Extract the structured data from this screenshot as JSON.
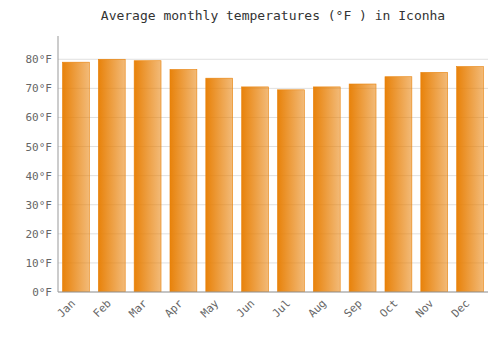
{
  "chart_data": {
    "type": "bar",
    "title": "Average monthly temperatures (°F ) in Iconha",
    "categories": [
      "Jan",
      "Feb",
      "Mar",
      "Apr",
      "May",
      "Jun",
      "Jul",
      "Aug",
      "Sep",
      "Oct",
      "Nov",
      "Dec"
    ],
    "values": [
      79,
      80,
      79.5,
      76.5,
      73.5,
      70.5,
      69.5,
      70.5,
      71.5,
      74,
      75.5,
      77.5
    ],
    "color": "#E8820A",
    "ylim": [
      0,
      88
    ],
    "yticks": [
      {
        "value": 0,
        "label": "0°F"
      },
      {
        "value": 10,
        "label": "10°F"
      },
      {
        "value": 20,
        "label": "20°F"
      },
      {
        "value": 30,
        "label": "30°F"
      },
      {
        "value": 40,
        "label": "40°F"
      },
      {
        "value": 50,
        "label": "50°F"
      },
      {
        "value": 60,
        "label": "60°F"
      },
      {
        "value": 70,
        "label": "70°F"
      },
      {
        "value": 80,
        "label": "80°F"
      }
    ],
    "grid": true
  }
}
